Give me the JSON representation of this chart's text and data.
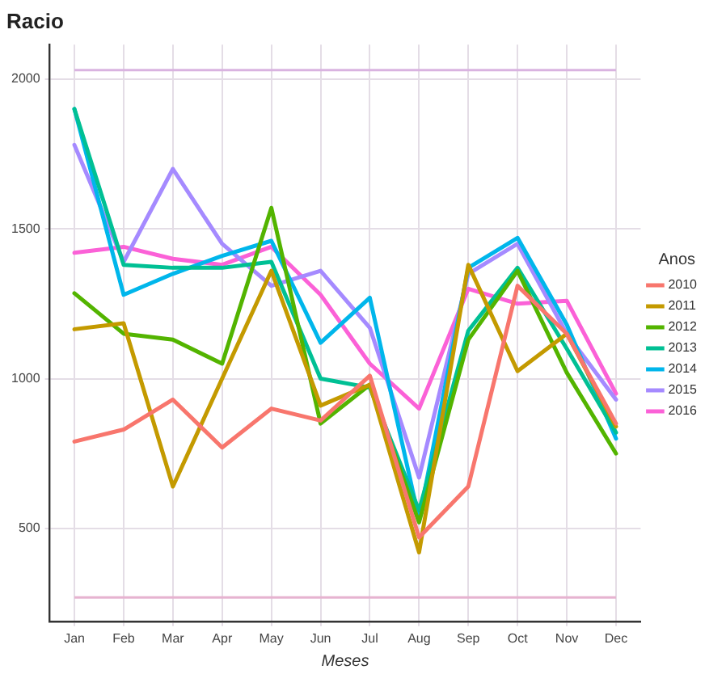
{
  "chart_data": {
    "type": "line",
    "title": "Racio",
    "xlabel": "Meses",
    "legend_title": "Anos",
    "categories": [
      "Jan",
      "Feb",
      "Mar",
      "Apr",
      "May",
      "Jun",
      "Jul",
      "Aug",
      "Sep",
      "Oct",
      "Nov",
      "Dec"
    ],
    "series": [
      {
        "name": "2010",
        "color": "#f8766d",
        "values": [
          790,
          830,
          930,
          770,
          900,
          860,
          1010,
          470,
          640,
          1310,
          1150,
          850
        ]
      },
      {
        "name": "2011",
        "color": "#c49a00",
        "values": [
          1165,
          1185,
          640,
          1000,
          1360,
          910,
          980,
          420,
          1380,
          1025,
          1150,
          840
        ]
      },
      {
        "name": "2012",
        "color": "#53b400",
        "values": [
          1285,
          1150,
          1130,
          1050,
          1570,
          850,
          980,
          520,
          1130,
          1360,
          1020,
          750
        ]
      },
      {
        "name": "2013",
        "color": "#00c094",
        "values": [
          1900,
          1380,
          1370,
          1370,
          1390,
          1000,
          970,
          560,
          1160,
          1370,
          1100,
          820
        ]
      },
      {
        "name": "2014",
        "color": "#00b6eb",
        "values": [
          1900,
          1280,
          1350,
          1410,
          1460,
          1120,
          1270,
          530,
          1370,
          1470,
          1180,
          800
        ]
      },
      {
        "name": "2015",
        "color": "#a58aff",
        "values": [
          1780,
          1390,
          1700,
          1450,
          1310,
          1360,
          1170,
          670,
          1350,
          1450,
          1150,
          930
        ]
      },
      {
        "name": "2016",
        "color": "#fb61d7",
        "values": [
          1420,
          1440,
          1400,
          1380,
          1440,
          1280,
          1050,
          900,
          1300,
          1250,
          1260,
          950
        ]
      }
    ],
    "ylim": [
      190,
      2115
    ],
    "yticks": [
      500,
      1000,
      1500,
      2000
    ],
    "ref_lines": [
      {
        "axis": "y",
        "value": 2030,
        "color": "#d9b3e0"
      },
      {
        "axis": "y",
        "value": 270,
        "color": "#e6b3d0"
      }
    ],
    "grid": true,
    "legend": "right",
    "marker": "none",
    "line_style": "solid"
  }
}
